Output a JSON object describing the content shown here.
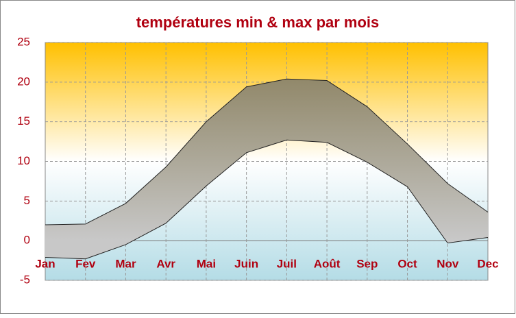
{
  "chart_data": {
    "type": "range_area",
    "title": "températures min & max par mois",
    "categories": [
      "Jan",
      "Fev",
      "Mar",
      "Avr",
      "Mai",
      "Juin",
      "Juil",
      "Août",
      "Sep",
      "Oct",
      "Nov",
      "Dec"
    ],
    "series": [
      {
        "color": "#202020",
        "values": [
          -2.1,
          -2.3,
          -0.5,
          2.2,
          6.9,
          11.1,
          12.7,
          12.4,
          9.9,
          6.8,
          -0.3,
          0.4
        ]
      },
      {
        "color": "#202020",
        "values": [
          2.0,
          2.1,
          4.7,
          9.3,
          15.0,
          19.4,
          20.4,
          20.2,
          16.9,
          12.2,
          7.2,
          3.6
        ]
      }
    ],
    "ylim": [
      -5,
      25
    ],
    "yticks": [
      -5,
      0,
      5,
      10,
      15,
      20,
      25
    ],
    "grid": true
  }
}
